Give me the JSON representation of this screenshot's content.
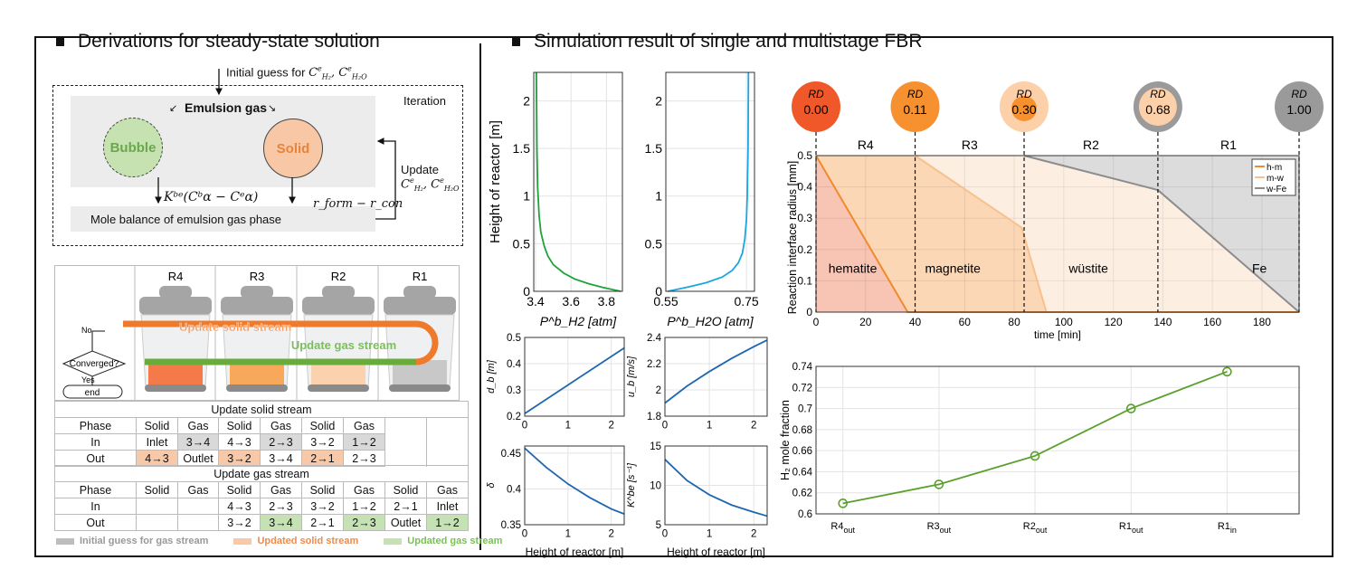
{
  "left": {
    "title": "Derivations for steady-state solution",
    "initial_guess": "Initial guess for",
    "vars": [
      {
        "base": "C",
        "sup": "e",
        "sub": "H₂"
      },
      {
        "base": "C",
        "sup": "e",
        "sub": "H₂O"
      }
    ],
    "iteration": "Iteration",
    "emulsion": "Emulsion gas",
    "bubble": "Bubble",
    "solid": "Solid",
    "kbe_formula": "Kᵇᵉ(Cᵇα − Cᵉα)",
    "rate_formula": "r_form − r_con",
    "mole_balance": "Mole balance of emulsion gas phase",
    "update": "Update",
    "reactors": [
      "R4",
      "R3",
      "R2",
      "R1"
    ],
    "reactor_bed_colors": [
      "#f57a4a",
      "#f8a85a",
      "#fbd2ad",
      "#c8c8c8"
    ],
    "flow": {
      "no": "No",
      "converged": "Converged?",
      "yes": "Yes",
      "end": "end",
      "solid_stream": "Update solid stream",
      "gas_stream": "Update gas stream"
    },
    "solid_table": {
      "title": "Update solid stream",
      "rows": [
        [
          {
            "t": "Phase"
          },
          {
            "t": "Solid"
          },
          {
            "t": "Gas"
          },
          {
            "t": "Solid"
          },
          {
            "t": "Gas"
          },
          {
            "t": "Solid"
          },
          {
            "t": "Gas"
          }
        ],
        [
          {
            "t": "In"
          },
          {
            "t": "Inlet"
          },
          {
            "t": "3→4",
            "h": "gray"
          },
          {
            "t": "4→3"
          },
          {
            "t": "2→3",
            "h": "gray"
          },
          {
            "t": "3→2"
          },
          {
            "t": "1→2",
            "h": "gray"
          }
        ],
        [
          {
            "t": "Out"
          },
          {
            "t": "4→3",
            "h": "orange"
          },
          {
            "t": "Outlet"
          },
          {
            "t": "3→2",
            "h": "orange"
          },
          {
            "t": "3→4"
          },
          {
            "t": "2→1",
            "h": "orange"
          },
          {
            "t": "2→3"
          }
        ]
      ]
    },
    "gas_table": {
      "title": "Update gas stream",
      "rows": [
        [
          {
            "t": "Phase"
          },
          {
            "t": "Solid"
          },
          {
            "t": "Gas"
          },
          {
            "t": "Solid"
          },
          {
            "t": "Gas"
          },
          {
            "t": "Solid"
          },
          {
            "t": "Gas"
          },
          {
            "t": "Solid"
          },
          {
            "t": "Gas"
          }
        ],
        [
          {
            "t": "In"
          },
          {
            "t": ""
          },
          {
            "t": ""
          },
          {
            "t": "4→3"
          },
          {
            "t": "2→3"
          },
          {
            "t": "3→2"
          },
          {
            "t": "1→2"
          },
          {
            "t": "2→1"
          },
          {
            "t": "Inlet"
          }
        ],
        [
          {
            "t": "Out"
          },
          {
            "t": ""
          },
          {
            "t": ""
          },
          {
            "t": "3→2"
          },
          {
            "t": "3→4",
            "h": "green"
          },
          {
            "t": "2→1"
          },
          {
            "t": "2→3",
            "h": "green"
          },
          {
            "t": "Outlet"
          },
          {
            "t": "1→2",
            "h": "green"
          }
        ]
      ]
    },
    "legend": [
      {
        "label": "Initial guess for gas stream",
        "color": "#bdbdbd",
        "text_color": "#999999"
      },
      {
        "label": "Updated solid stream",
        "color": "#f8c9a8",
        "text_color": "#f08a4b"
      },
      {
        "label": "Updated gas stream",
        "color": "#c6e2b4",
        "text_color": "#7cbf5a"
      }
    ]
  },
  "right": {
    "title": "Simulation result of single and multistage FBR",
    "rd_label": "RD",
    "rd_circles": [
      {
        "value": "0.00",
        "outer": "#f0582a",
        "inner": null
      },
      {
        "value": "0.11",
        "outer": "#f7902e",
        "inner": null
      },
      {
        "value": "0.30",
        "outer": "#fcd0a8",
        "inner": "#f7902e"
      },
      {
        "value": "0.68",
        "outer": "#9a9a9a",
        "inner": "#fcd0a8"
      },
      {
        "value": "1.00",
        "outer": "#9a9a9a",
        "inner": null
      }
    ]
  },
  "chart_data": [
    {
      "id": "p_h2",
      "type": "line",
      "xlabel": "P^b_H2 [atm]",
      "ylabel": "Height of reactor [m]",
      "xlim": [
        3.39,
        3.89
      ],
      "ylim": [
        0,
        2.3
      ],
      "xticks": [
        3.4,
        3.6,
        3.8
      ],
      "yticks": [
        0,
        0.5,
        1,
        1.5,
        2
      ],
      "grid": true,
      "color": "#1fa23a",
      "series": [
        {
          "x": [
            3.88,
            3.78,
            3.7,
            3.62,
            3.56,
            3.5,
            3.47,
            3.45,
            3.43,
            3.42,
            3.412,
            3.408,
            3.405
          ],
          "y": [
            0,
            0.04,
            0.08,
            0.13,
            0.19,
            0.28,
            0.37,
            0.47,
            0.62,
            0.8,
            1.1,
            1.5,
            2.3
          ]
        }
      ]
    },
    {
      "id": "p_h2o",
      "type": "line",
      "xlabel": "P^b_H2O [atm]",
      "ylabel": "",
      "xlim": [
        0.55,
        0.77
      ],
      "ylim": [
        0,
        2.3
      ],
      "xticks": [
        0.55,
        0.75
      ],
      "yticks": [
        0,
        0.5,
        1,
        1.5,
        2
      ],
      "grid": true,
      "color": "#1aa6e0",
      "series": [
        {
          "x": [
            0.555,
            0.6,
            0.65,
            0.69,
            0.715,
            0.73,
            0.74,
            0.746,
            0.75,
            0.752,
            0.754,
            0.755
          ],
          "y": [
            0,
            0.04,
            0.09,
            0.15,
            0.22,
            0.3,
            0.4,
            0.55,
            0.75,
            1.0,
            1.5,
            2.3
          ]
        }
      ]
    },
    {
      "id": "d_b",
      "type": "line",
      "xlabel": "",
      "ylabel": "d_b [m]",
      "xlim": [
        0,
        2.3
      ],
      "ylim": [
        0.2,
        0.5
      ],
      "xticks": [
        0,
        1,
        2
      ],
      "yticks": [
        0.2,
        0.3,
        0.4,
        0.5
      ],
      "grid": true,
      "color": "#1f66b0",
      "series": [
        {
          "x": [
            0,
            2.3
          ],
          "y": [
            0.21,
            0.46
          ]
        }
      ]
    },
    {
      "id": "u_b",
      "type": "line",
      "xlabel": "",
      "ylabel": "u_b [m/s]",
      "xlim": [
        0,
        2.3
      ],
      "ylim": [
        1.8,
        2.4
      ],
      "xticks": [
        0,
        1,
        2
      ],
      "yticks": [
        1.8,
        2,
        2.2,
        2.4
      ],
      "grid": true,
      "color": "#1f66b0",
      "series": [
        {
          "x": [
            0,
            0.5,
            1,
            1.5,
            2,
            2.3
          ],
          "y": [
            1.9,
            2.03,
            2.14,
            2.24,
            2.33,
            2.38
          ]
        }
      ]
    },
    {
      "id": "delta",
      "type": "line",
      "xlabel": "Height of reactor [m]",
      "ylabel": "δ",
      "xlim": [
        0,
        2.3
      ],
      "ylim": [
        0.35,
        0.46
      ],
      "xticks": [
        0,
        1,
        2
      ],
      "yticks": [
        0.35,
        0.4,
        0.45
      ],
      "grid": true,
      "color": "#1f66b0",
      "series": [
        {
          "x": [
            0,
            0.5,
            1,
            1.5,
            2,
            2.3
          ],
          "y": [
            0.457,
            0.43,
            0.407,
            0.388,
            0.372,
            0.365
          ]
        }
      ]
    },
    {
      "id": "k_be",
      "type": "line",
      "xlabel": "Height of reactor [m]",
      "ylabel": "K^be [s⁻¹]",
      "xlim": [
        0,
        2.3
      ],
      "ylim": [
        5,
        15
      ],
      "xticks": [
        0,
        1,
        2
      ],
      "yticks": [
        5,
        10,
        15
      ],
      "grid": true,
      "color": "#1f66b0",
      "series": [
        {
          "x": [
            0,
            0.5,
            1,
            1.5,
            2,
            2.3
          ],
          "y": [
            13.3,
            10.6,
            8.8,
            7.5,
            6.6,
            6.1
          ]
        }
      ]
    },
    {
      "id": "interface",
      "type": "area",
      "xlabel": "time [min]",
      "ylabel": "Reaction interface radius [mm]",
      "xlim": [
        0,
        195
      ],
      "ylim": [
        0,
        0.5
      ],
      "xticks": [
        0,
        20,
        40,
        60,
        80,
        100,
        120,
        140,
        160,
        180
      ],
      "yticks": [
        0,
        0.1,
        0.2,
        0.3,
        0.4,
        0.5
      ],
      "grid": true,
      "legend": "top-right",
      "stage_boundaries": [
        0,
        40,
        84,
        138,
        195
      ],
      "stages": [
        "R4",
        "R3",
        "R2",
        "R1"
      ],
      "regions": [
        {
          "label": "hematite",
          "color": "#f8c4b4"
        },
        {
          "label": "magnetite",
          "color": "#fbd7b6"
        },
        {
          "label": "wüstite",
          "color": "#fdeee2"
        },
        {
          "label": "Fe",
          "color": "#dcdcdc"
        }
      ],
      "series": [
        {
          "name": "h-m",
          "color": "#f08a2c",
          "x": [
            0,
            37,
            195
          ],
          "y": [
            0.5,
            0,
            0
          ]
        },
        {
          "name": "m-w",
          "color": "#f8c08c",
          "x": [
            40,
            83,
            93
          ],
          "y": [
            0.5,
            0.27,
            0
          ]
        },
        {
          "name": "w-Fe",
          "color": "#8c8c8c",
          "x": [
            84,
            138,
            195
          ],
          "y": [
            0.5,
            0.39,
            0
          ]
        }
      ]
    },
    {
      "id": "h2_fraction",
      "type": "line",
      "xlabel": "",
      "ylabel": "H₂ mole fraction",
      "categories": [
        "R4",
        "R3",
        "R2",
        "R1",
        "R1"
      ],
      "category_subs": [
        "out",
        "out",
        "out",
        "out",
        "in"
      ],
      "ylim": [
        0.6,
        0.74
      ],
      "yticks": [
        0.6,
        0.62,
        0.64,
        0.66,
        0.68,
        0.7,
        0.72,
        0.74
      ],
      "grid": true,
      "color": "#5aa02c",
      "series": [
        {
          "values": [
            0.61,
            0.628,
            0.655,
            0.7,
            0.735
          ]
        }
      ]
    }
  ]
}
